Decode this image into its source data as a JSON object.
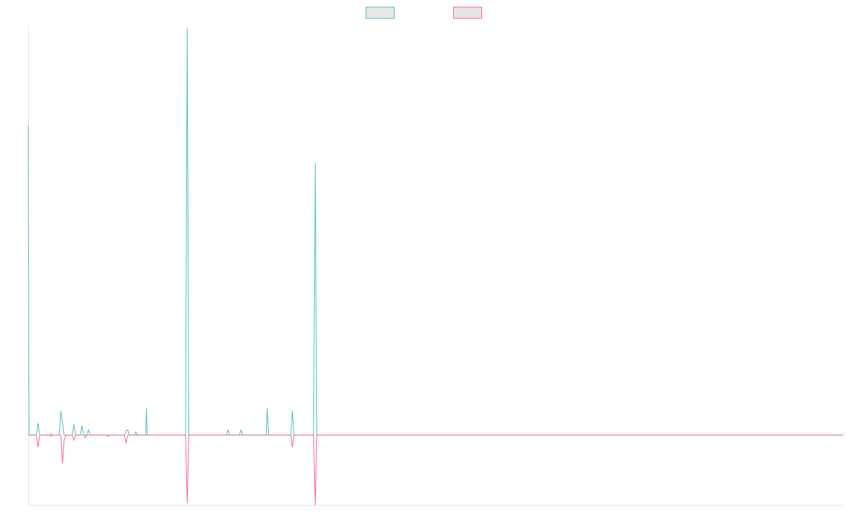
{
  "chart_data": {
    "type": "line",
    "title": "",
    "xlabel": "",
    "ylabel": "",
    "grid": false,
    "legend_position": "top-center",
    "ylim": [
      -105,
      615
    ],
    "xlim": [
      0,
      1000
    ],
    "series": [
      {
        "name": "",
        "color": "#4BC0C0",
        "fill": "#E6E6E6",
        "points": [
          [
            0,
            465
          ],
          [
            1,
            0
          ],
          [
            10,
            0
          ],
          [
            12,
            18
          ],
          [
            14,
            0
          ],
          [
            26,
            0
          ],
          [
            28,
            2
          ],
          [
            30,
            0
          ],
          [
            38,
            0
          ],
          [
            40,
            36
          ],
          [
            42,
            18
          ],
          [
            44,
            0
          ],
          [
            54,
            0
          ],
          [
            56,
            16
          ],
          [
            58,
            0
          ],
          [
            64,
            0
          ],
          [
            66,
            14
          ],
          [
            68,
            0
          ],
          [
            72,
            0
          ],
          [
            74,
            8
          ],
          [
            76,
            0
          ],
          [
            96,
            0
          ],
          [
            98,
            0
          ],
          [
            100,
            0
          ],
          [
            118,
            0
          ],
          [
            120,
            6
          ],
          [
            122,
            8
          ],
          [
            124,
            0
          ],
          [
            130,
            0
          ],
          [
            132,
            5
          ],
          [
            134,
            0
          ],
          [
            144,
            0
          ],
          [
            145,
            40
          ],
          [
            146,
            0
          ],
          [
            193,
            0
          ],
          [
            195,
            610
          ],
          [
            197,
            0
          ],
          [
            243,
            0
          ],
          [
            245,
            8
          ],
          [
            247,
            0
          ],
          [
            259,
            0
          ],
          [
            261,
            8
          ],
          [
            263,
            0
          ],
          [
            292,
            0
          ],
          [
            293,
            40
          ],
          [
            295,
            0
          ],
          [
            322,
            0
          ],
          [
            324,
            36
          ],
          [
            326,
            0
          ],
          [
            350,
            0
          ],
          [
            352,
            408
          ],
          [
            354,
            0
          ],
          [
            1000,
            0
          ]
        ]
      },
      {
        "name": "",
        "color": "#FF6384",
        "fill": "#E6E6E6",
        "points": [
          [
            0,
            0
          ],
          [
            10,
            0
          ],
          [
            12,
            -18
          ],
          [
            14,
            0
          ],
          [
            26,
            0
          ],
          [
            28,
            -2
          ],
          [
            30,
            0
          ],
          [
            40,
            0
          ],
          [
            42,
            -42
          ],
          [
            44,
            -8
          ],
          [
            46,
            0
          ],
          [
            54,
            0
          ],
          [
            56,
            -8
          ],
          [
            58,
            0
          ],
          [
            68,
            0
          ],
          [
            70,
            -4
          ],
          [
            72,
            0
          ],
          [
            96,
            0
          ],
          [
            98,
            -2
          ],
          [
            100,
            0
          ],
          [
            118,
            0
          ],
          [
            120,
            -12
          ],
          [
            122,
            0
          ],
          [
            193,
            0
          ],
          [
            195,
            -102
          ],
          [
            197,
            0
          ],
          [
            322,
            0
          ],
          [
            324,
            -18
          ],
          [
            326,
            0
          ],
          [
            350,
            0
          ],
          [
            352,
            -105
          ],
          [
            354,
            0
          ],
          [
            1000,
            0
          ]
        ]
      }
    ]
  }
}
